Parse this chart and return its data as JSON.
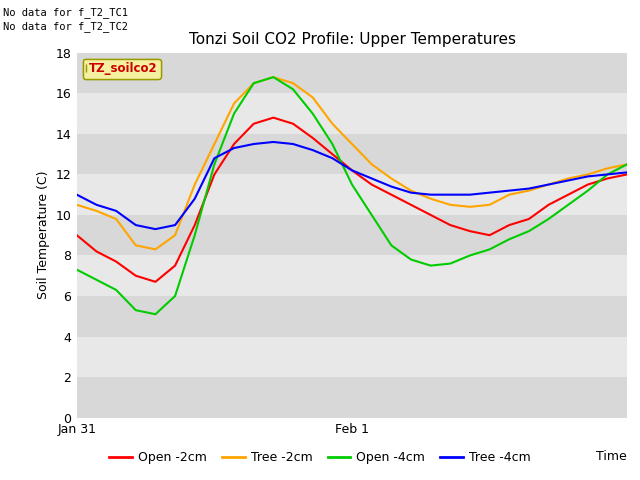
{
  "title": "Tonzi Soil CO2 Profile: Upper Temperatures",
  "ylabel": "Soil Temperature (C)",
  "top_left_text": "No data for f_T2_TC1\nNo data for f_T2_TC2",
  "legend_label_text": "TZ_soilco2",
  "ylim": [
    0,
    18
  ],
  "yticks": [
    0,
    2,
    4,
    6,
    8,
    10,
    12,
    14,
    16,
    18
  ],
  "bg_color": "#e8e8e8",
  "line_colors": {
    "open_2cm": "#ff0000",
    "tree_2cm": "#ffa500",
    "open_4cm": "#00cc00",
    "tree_4cm": "#0000ff"
  },
  "legend_entries": [
    "Open -2cm",
    "Tree -2cm",
    "Open -4cm",
    "Tree -4cm"
  ],
  "open_2cm": [
    9.0,
    8.2,
    7.7,
    7.0,
    6.7,
    7.5,
    9.5,
    12.0,
    13.5,
    14.5,
    14.8,
    14.5,
    13.8,
    13.0,
    12.2,
    11.5,
    11.0,
    10.5,
    10.0,
    9.5,
    9.2,
    9.0,
    9.5,
    9.8,
    10.5,
    11.0,
    11.5,
    11.8,
    12.0
  ],
  "tree_2cm": [
    10.5,
    10.2,
    9.8,
    8.5,
    8.3,
    9.0,
    11.5,
    13.5,
    15.5,
    16.5,
    16.8,
    16.5,
    15.8,
    14.5,
    13.5,
    12.5,
    11.8,
    11.2,
    10.8,
    10.5,
    10.4,
    10.5,
    11.0,
    11.2,
    11.5,
    11.8,
    12.0,
    12.3,
    12.5
  ],
  "open_4cm": [
    7.3,
    6.8,
    6.3,
    5.3,
    5.1,
    6.0,
    9.0,
    12.5,
    15.0,
    16.5,
    16.8,
    16.2,
    15.0,
    13.5,
    11.5,
    10.0,
    8.5,
    7.8,
    7.5,
    7.6,
    8.0,
    8.3,
    8.8,
    9.2,
    9.8,
    10.5,
    11.2,
    12.0,
    12.5
  ],
  "tree_4cm": [
    11.0,
    10.5,
    10.2,
    9.5,
    9.3,
    9.5,
    10.8,
    12.8,
    13.3,
    13.5,
    13.6,
    13.5,
    13.2,
    12.8,
    12.2,
    11.8,
    11.4,
    11.1,
    11.0,
    11.0,
    11.0,
    11.1,
    11.2,
    11.3,
    11.5,
    11.7,
    11.9,
    12.0,
    12.1
  ],
  "band_colors": [
    "#d8d8d8",
    "#e8e8e8"
  ]
}
